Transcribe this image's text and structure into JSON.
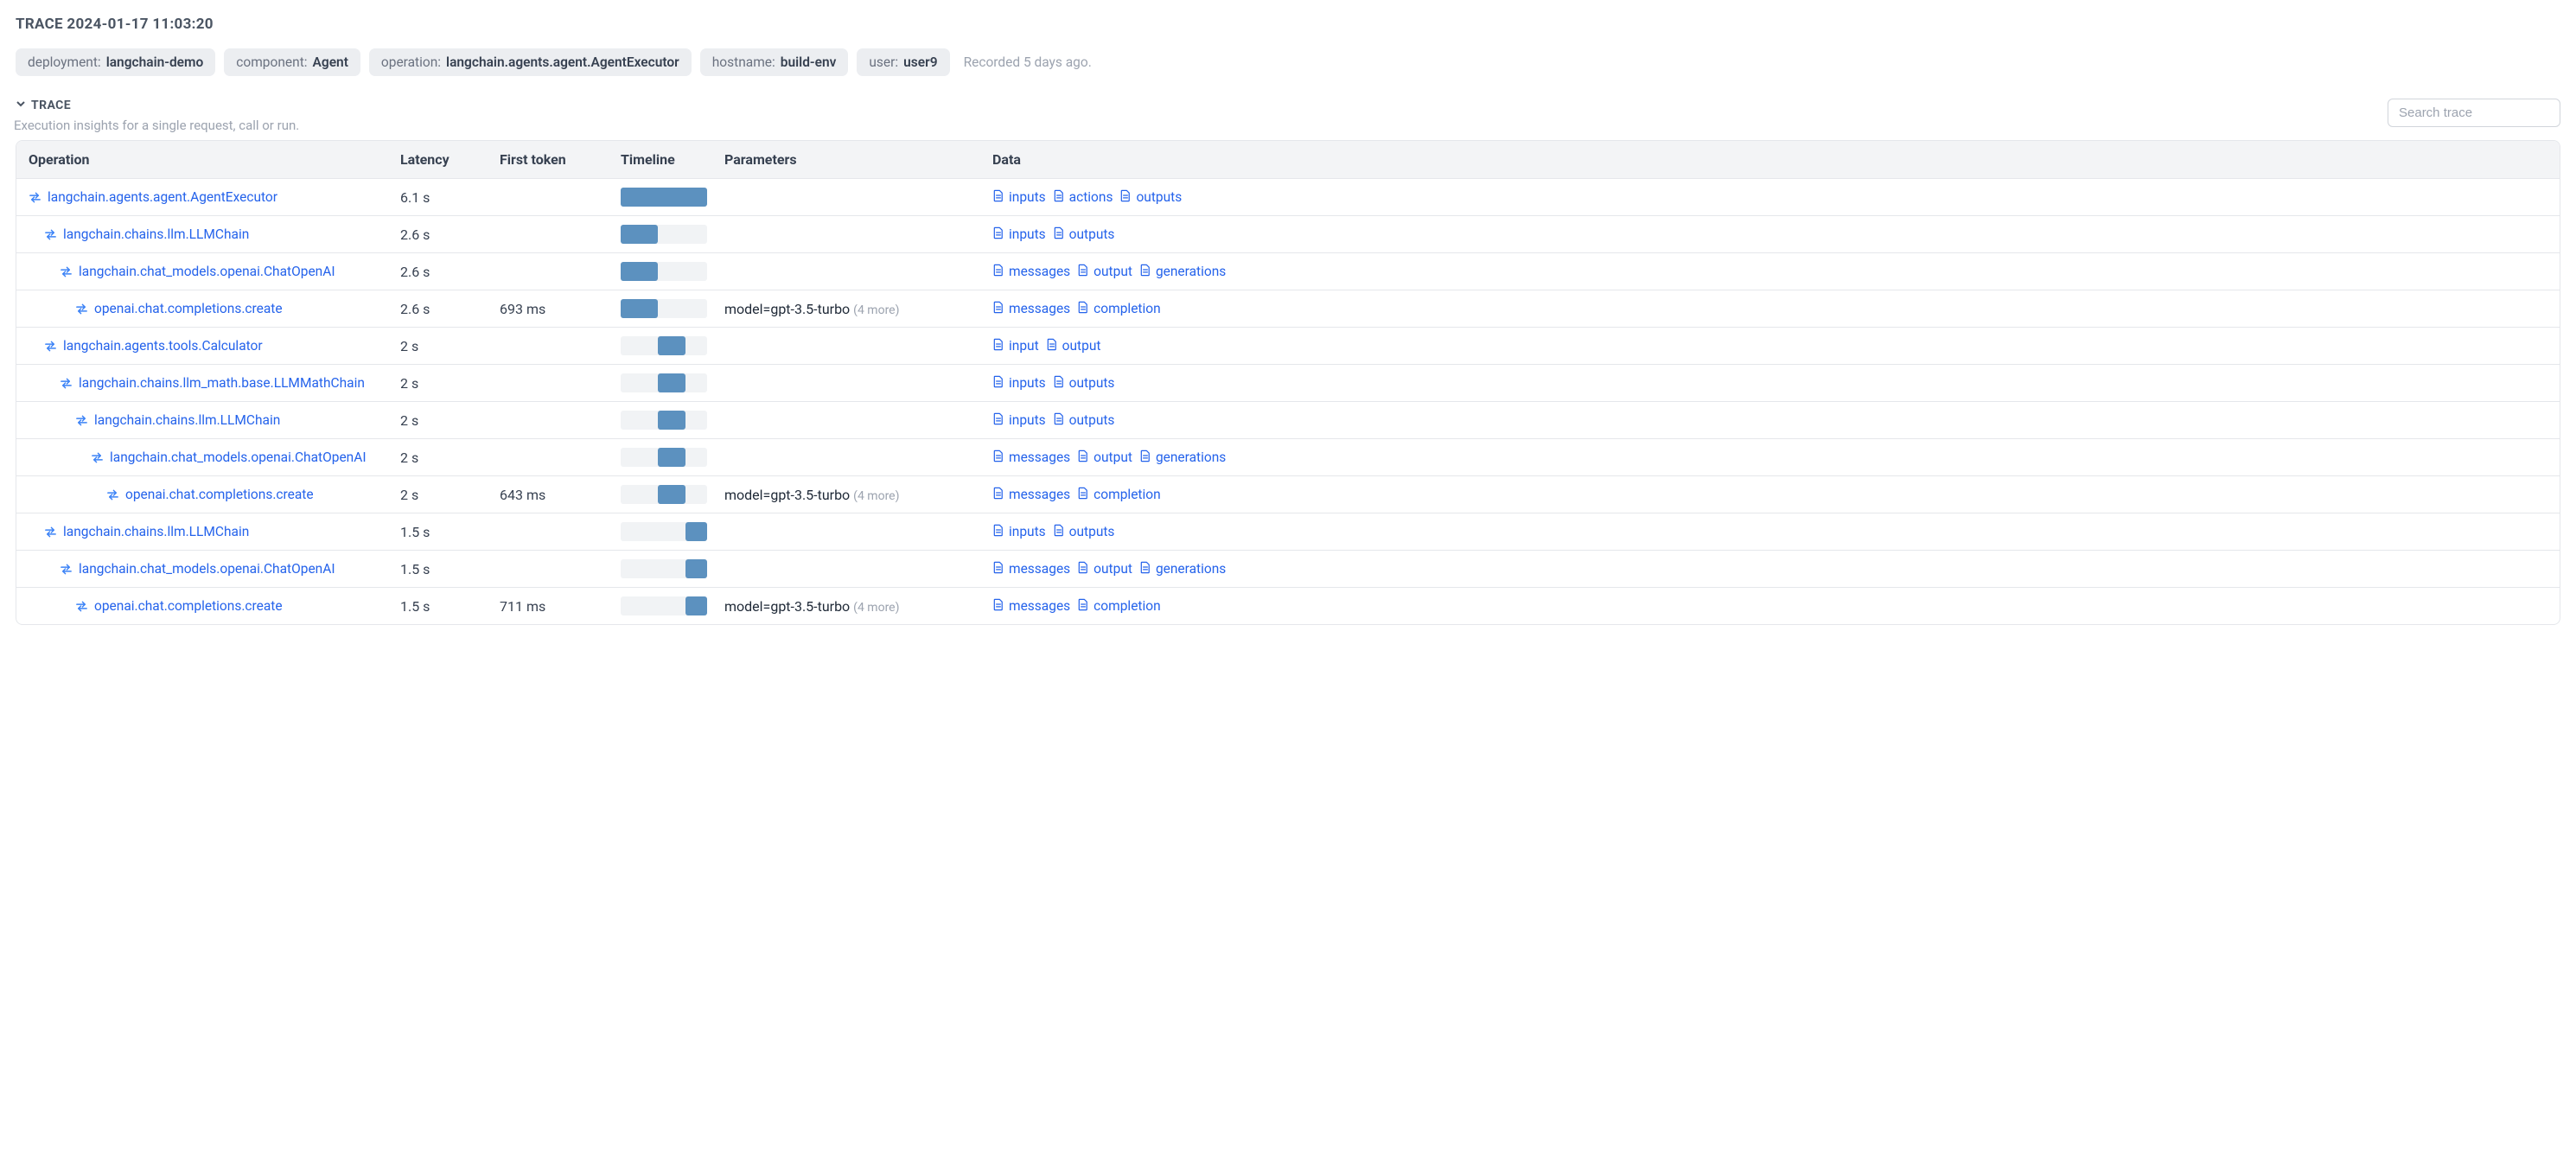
{
  "header": {
    "title": "TRACE 2024-01-17 11:03:20"
  },
  "tags": [
    {
      "key": "deployment:",
      "val": "langchain-demo"
    },
    {
      "key": "component:",
      "val": "Agent"
    },
    {
      "key": "operation:",
      "val": "langchain.agents.agent.AgentExecutor"
    },
    {
      "key": "hostname:",
      "val": "build-env"
    },
    {
      "key": "user:",
      "val": "user9"
    }
  ],
  "recorded": "Recorded 5 days ago.",
  "section": {
    "title": "TRACE",
    "subtitle": "Execution insights for a single request, call or run.",
    "search_placeholder": "Search trace"
  },
  "columns": {
    "operation": "Operation",
    "latency": "Latency",
    "first_token": "First token",
    "timeline": "Timeline",
    "parameters": "Parameters",
    "data": "Data"
  },
  "timeline": {
    "track_color": "#f1f3f5",
    "bar_color": "#5c91bf",
    "total_ms": 6100
  },
  "rows": [
    {
      "indent": 0,
      "op": "langchain.agents.agent.AgentExecutor",
      "latency": "6.1 s",
      "first_token": "",
      "start_pct": 0,
      "width_pct": 100,
      "params": "",
      "more": "",
      "data": [
        "inputs",
        "actions",
        "outputs"
      ]
    },
    {
      "indent": 1,
      "op": "langchain.chains.llm.LLMChain",
      "latency": "2.6 s",
      "first_token": "",
      "start_pct": 0,
      "width_pct": 42.6,
      "params": "",
      "more": "",
      "data": [
        "inputs",
        "outputs"
      ]
    },
    {
      "indent": 2,
      "op": "langchain.chat_models.openai.ChatOpenAI",
      "latency": "2.6 s",
      "first_token": "",
      "start_pct": 0,
      "width_pct": 42.6,
      "params": "",
      "more": "",
      "data": [
        "messages",
        "output",
        "generations"
      ]
    },
    {
      "indent": 3,
      "op": "openai.chat.completions.create",
      "latency": "2.6 s",
      "first_token": "693 ms",
      "start_pct": 0,
      "width_pct": 42.6,
      "params": "model=gpt-3.5-turbo",
      "more": "(4 more)",
      "data": [
        "messages",
        "completion"
      ]
    },
    {
      "indent": 1,
      "op": "langchain.agents.tools.Calculator",
      "latency": "2 s",
      "first_token": "",
      "start_pct": 42.6,
      "width_pct": 32.8,
      "params": "",
      "more": "",
      "data": [
        "input",
        "output"
      ]
    },
    {
      "indent": 2,
      "op": "langchain.chains.llm_math.base.LLMMathChain",
      "latency": "2 s",
      "first_token": "",
      "start_pct": 42.6,
      "width_pct": 32.8,
      "params": "",
      "more": "",
      "data": [
        "inputs",
        "outputs"
      ]
    },
    {
      "indent": 3,
      "op": "langchain.chains.llm.LLMChain",
      "latency": "2 s",
      "first_token": "",
      "start_pct": 42.6,
      "width_pct": 32.8,
      "params": "",
      "more": "",
      "data": [
        "inputs",
        "outputs"
      ]
    },
    {
      "indent": 4,
      "op": "langchain.chat_models.openai.ChatOpenAI",
      "latency": "2 s",
      "first_token": "",
      "start_pct": 42.6,
      "width_pct": 32.8,
      "params": "",
      "more": "",
      "data": [
        "messages",
        "output",
        "generations"
      ]
    },
    {
      "indent": 5,
      "op": "openai.chat.completions.create",
      "latency": "2 s",
      "first_token": "643 ms",
      "start_pct": 42.6,
      "width_pct": 32.8,
      "params": "model=gpt-3.5-turbo",
      "more": "(4 more)",
      "data": [
        "messages",
        "completion"
      ]
    },
    {
      "indent": 1,
      "op": "langchain.chains.llm.LLMChain",
      "latency": "1.5 s",
      "first_token": "",
      "start_pct": 75.4,
      "width_pct": 24.6,
      "params": "",
      "more": "",
      "data": [
        "inputs",
        "outputs"
      ]
    },
    {
      "indent": 2,
      "op": "langchain.chat_models.openai.ChatOpenAI",
      "latency": "1.5 s",
      "first_token": "",
      "start_pct": 75.4,
      "width_pct": 24.6,
      "params": "",
      "more": "",
      "data": [
        "messages",
        "output",
        "generations"
      ]
    },
    {
      "indent": 3,
      "op": "openai.chat.completions.create",
      "latency": "1.5 s",
      "first_token": "711 ms",
      "start_pct": 75.4,
      "width_pct": 24.6,
      "params": "model=gpt-3.5-turbo",
      "more": "(4 more)",
      "data": [
        "messages",
        "completion"
      ]
    }
  ]
}
